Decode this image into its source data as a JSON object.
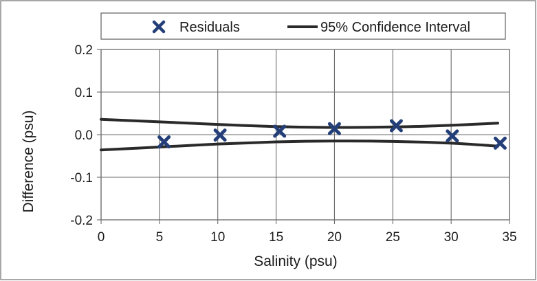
{
  "chart_data": {
    "type": "scatter",
    "title": "",
    "xlabel": "Salinity (psu)",
    "ylabel": "Difference (psu)",
    "xlim": [
      0,
      35
    ],
    "ylim": [
      -0.2,
      0.2
    ],
    "x_ticks": [
      "0",
      "5",
      "10",
      "15",
      "20",
      "25",
      "30",
      "35"
    ],
    "y_ticks": [
      "0.2",
      "0.1",
      "0.0",
      "-0.1",
      "-0.2"
    ],
    "grid": true,
    "legend_position": "top",
    "series": [
      {
        "name": "Residuals",
        "kind": "scatter",
        "marker": "x",
        "color": "#243f78",
        "x": [
          5.4,
          10.2,
          15.3,
          20.0,
          25.3,
          30.1,
          34.2
        ],
        "y": [
          -0.017,
          -0.001,
          0.008,
          0.014,
          0.021,
          -0.003,
          -0.02
        ]
      },
      {
        "name": "95% Confidence Interval",
        "kind": "line",
        "color": "#2a2a2a",
        "upper": {
          "x": [
            0,
            5,
            10,
            15,
            20,
            25,
            30,
            34
          ],
          "y": [
            0.036,
            0.03,
            0.024,
            0.019,
            0.017,
            0.018,
            0.022,
            0.027
          ]
        },
        "lower": {
          "x": [
            0,
            5,
            10,
            15,
            20,
            25,
            30,
            34
          ],
          "y": [
            -0.036,
            -0.029,
            -0.022,
            -0.017,
            -0.015,
            -0.016,
            -0.02,
            -0.027
          ]
        }
      }
    ]
  },
  "colors": {
    "grid": "#6a6a6a",
    "border": "#6a6a6a",
    "marker": "#243f78",
    "line": "#2a2a2a"
  }
}
